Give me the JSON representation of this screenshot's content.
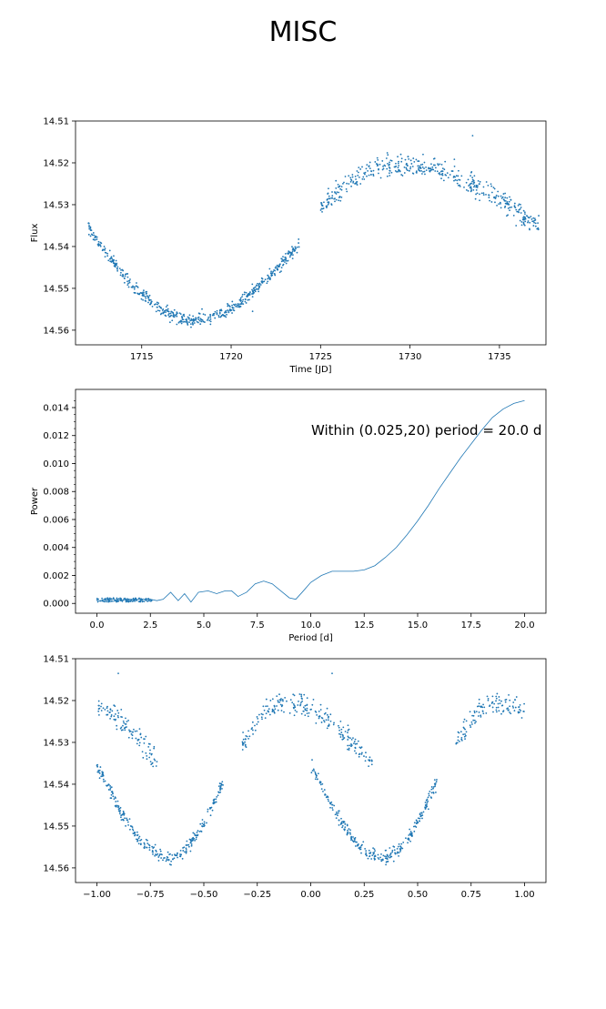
{
  "figure": {
    "title": "MISC"
  },
  "chart_data": [
    {
      "type": "scatter",
      "title": "",
      "xlabel": "Time [JD]",
      "ylabel": "Flux",
      "xlim": [
        1711.3,
        1737.6
      ],
      "ylim": [
        14.5635,
        14.51
      ],
      "y_inverted": true,
      "xticks": [
        1715,
        1720,
        1725,
        1730,
        1735
      ],
      "yticks": [
        14.51,
        14.52,
        14.53,
        14.54,
        14.55,
        14.56
      ],
      "color": "#1f77b4",
      "segments": [
        {
          "x_range": [
            1712.0,
            1723.8
          ],
          "shape": "dip",
          "y_start": 14.5355,
          "y_min_at": 1717.8,
          "y_min": 14.5575,
          "y_end": 14.5395,
          "scatter": 0.0017,
          "n": 560
        },
        {
          "x_range": [
            1725.0,
            1737.2
          ],
          "shape": "hump",
          "y_start": 14.5305,
          "y_peak_at": 1729.5,
          "y_peak": 14.5205,
          "y_end": 14.5355,
          "scatter": 0.0028,
          "n": 460
        }
      ],
      "outliers": [
        {
          "x": 1733.5,
          "y": 14.5135
        },
        {
          "x": 1721.2,
          "y": 14.5555
        }
      ],
      "grid": false
    },
    {
      "type": "line",
      "title": "",
      "xlabel": "Period [d]",
      "ylabel": "Power",
      "xlim": [
        -1.0,
        21.0
      ],
      "ylim": [
        -0.0007,
        0.0153
      ],
      "xticks": [
        0.0,
        2.5,
        5.0,
        7.5,
        10.0,
        12.5,
        15.0,
        17.5,
        20.0
      ],
      "yticks": [
        0.0,
        0.002,
        0.004,
        0.006,
        0.008,
        0.01,
        0.012,
        0.014
      ],
      "series": [
        {
          "x": [
            0.0,
            0.5,
            1.0,
            1.5,
            2.0,
            2.5,
            2.8,
            3.1,
            3.45,
            3.8,
            4.1,
            4.4,
            4.75,
            5.2,
            5.6,
            6.0,
            6.3,
            6.6,
            7.0,
            7.4,
            7.8,
            8.2,
            8.6,
            9.0,
            9.3,
            9.6,
            10.0,
            10.5,
            11.0,
            11.5,
            12.0,
            12.5,
            13.0,
            13.5,
            14.0,
            14.5,
            15.0,
            15.5,
            16.0,
            16.5,
            17.0,
            17.5,
            18.0,
            18.5,
            19.0,
            19.5,
            20.0
          ],
          "y": [
            0.0002,
            0.0001,
            0.0002,
            0.0003,
            0.0003,
            0.0003,
            0.0002,
            0.0003,
            0.0008,
            0.0002,
            0.0007,
            0.0001,
            0.0008,
            0.0009,
            0.0007,
            0.0009,
            0.0009,
            0.0005,
            0.0008,
            0.0014,
            0.0016,
            0.0014,
            0.0009,
            0.0004,
            0.0003,
            0.0008,
            0.0015,
            0.002,
            0.0023,
            0.0023,
            0.0023,
            0.0024,
            0.0027,
            0.0033,
            0.004,
            0.0049,
            0.0059,
            0.007,
            0.0082,
            0.0093,
            0.0104,
            0.0114,
            0.0124,
            0.0133,
            0.0139,
            0.0143,
            0.0145
          ],
          "color": "#1f77b4"
        }
      ],
      "annotation": "Within (0.025,20) period = 20.0 d",
      "grid": false
    },
    {
      "type": "scatter",
      "title": "",
      "xlabel": "",
      "ylabel": "",
      "xlim": [
        -1.1,
        1.1
      ],
      "ylim": [
        14.5635,
        14.51
      ],
      "y_inverted": true,
      "xticks": [
        -1.0,
        -0.75,
        -0.5,
        -0.25,
        0.0,
        0.25,
        0.5,
        0.75,
        1.0
      ],
      "xtick_labels": [
        "−1.00",
        "−0.75",
        "−0.50",
        "−0.25",
        "0.00",
        "0.25",
        "0.50",
        "0.75",
        "1.00"
      ],
      "yticks": [
        14.51,
        14.52,
        14.53,
        14.54,
        14.55,
        14.56
      ],
      "color": "#1f77b4",
      "segments": [
        {
          "x_range": [
            -1.0,
            -0.41
          ],
          "shape": "dip",
          "y_start": 14.5355,
          "y_min_at": -0.66,
          "y_min": 14.5575,
          "y_end": 14.5395,
          "scatter": 0.0017,
          "n": 280
        },
        {
          "x_range": [
            -0.32,
            0.29
          ],
          "shape": "hump",
          "y_start": 14.5305,
          "y_peak_at": -0.13,
          "y_peak": 14.5205,
          "y_end": 14.5355,
          "scatter": 0.0028,
          "n": 230
        },
        {
          "x_range": [
            0.0,
            0.59
          ],
          "shape": "dip",
          "y_start": 14.5355,
          "y_min_at": 0.34,
          "y_min": 14.5575,
          "y_end": 14.5395,
          "scatter": 0.0017,
          "n": 280
        },
        {
          "x_range": [
            0.68,
            1.0
          ],
          "shape": "hump",
          "y_start": 14.5305,
          "y_peak_at": 0.87,
          "y_peak": 14.5205,
          "y_end": 14.5225,
          "scatter": 0.0028,
          "n": 120
        },
        {
          "x_range": [
            -1.0,
            -0.71
          ],
          "shape": "hump",
          "y_start": 14.5225,
          "y_peak_at": -1.0,
          "y_peak": 14.5225,
          "y_end": 14.5355,
          "scatter": 0.0028,
          "n": 110
        }
      ],
      "outliers": [
        {
          "x": -0.9,
          "y": 14.5135
        },
        {
          "x": 0.1,
          "y": 14.5135
        }
      ],
      "grid": false
    }
  ]
}
